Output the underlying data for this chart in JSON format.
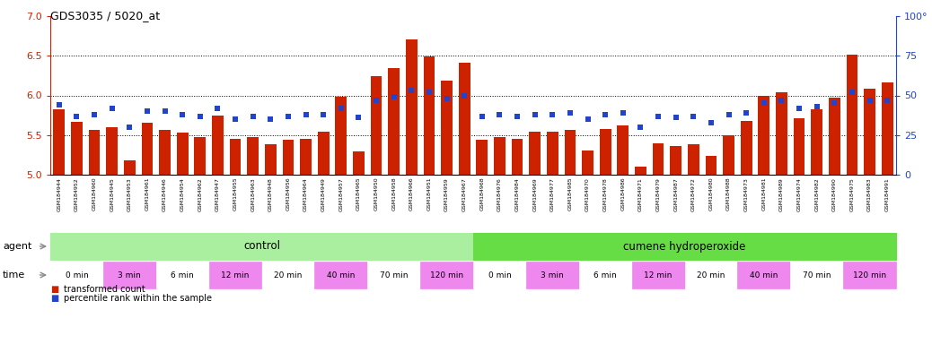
{
  "title": "GDS3035 / 5020_at",
  "samples": [
    "GSM184944",
    "GSM184952",
    "GSM184960",
    "GSM184945",
    "GSM184953",
    "GSM184961",
    "GSM184946",
    "GSM184954",
    "GSM184962",
    "GSM184947",
    "GSM184955",
    "GSM184963",
    "GSM184948",
    "GSM184956",
    "GSM184964",
    "GSM184949",
    "GSM184957",
    "GSM184965",
    "GSM184950",
    "GSM184958",
    "GSM184966",
    "GSM184951",
    "GSM184959",
    "GSM184967",
    "GSM184968",
    "GSM184976",
    "GSM184984",
    "GSM184969",
    "GSM184977",
    "GSM184985",
    "GSM184970",
    "GSM184978",
    "GSM184986",
    "GSM184971",
    "GSM184979",
    "GSM184987",
    "GSM184972",
    "GSM184980",
    "GSM184988",
    "GSM184973",
    "GSM184981",
    "GSM184989",
    "GSM184974",
    "GSM184982",
    "GSM184990",
    "GSM184975",
    "GSM184983",
    "GSM184991"
  ],
  "bar_values": [
    5.82,
    5.67,
    5.56,
    5.6,
    5.18,
    5.65,
    5.57,
    5.53,
    5.47,
    5.75,
    5.45,
    5.47,
    5.38,
    5.44,
    5.45,
    5.54,
    5.98,
    5.29,
    6.24,
    6.34,
    6.71,
    6.49,
    6.19,
    6.41,
    5.44,
    5.47,
    5.45,
    5.54,
    5.54,
    5.56,
    5.31,
    5.58,
    5.62,
    5.1,
    5.39,
    5.36,
    5.38,
    5.24,
    5.5,
    5.68,
    5.99,
    6.04,
    5.71,
    5.82,
    5.97,
    6.51,
    6.09,
    6.16
  ],
  "percentile_values": [
    44,
    37,
    38,
    42,
    30,
    40,
    40,
    38,
    37,
    42,
    35,
    37,
    35,
    37,
    38,
    38,
    42,
    36,
    47,
    49,
    53,
    52,
    48,
    50,
    37,
    38,
    37,
    38,
    38,
    39,
    35,
    38,
    39,
    30,
    37,
    36,
    37,
    33,
    38,
    39,
    45,
    47,
    42,
    43,
    45,
    52,
    47,
    47
  ],
  "ylim_left": [
    5.0,
    7.0
  ],
  "ylim_right": [
    0,
    100
  ],
  "yticks_left": [
    5.0,
    5.5,
    6.0,
    6.5,
    7.0
  ],
  "yticks_right": [
    0,
    25,
    50,
    75,
    100
  ],
  "ytick_labels_right": [
    "0",
    "25",
    "50",
    "75",
    "100°"
  ],
  "gridlines": [
    5.5,
    6.0,
    6.5
  ],
  "bar_color": "#cc2200",
  "square_color": "#2244cc",
  "agent_control_color": "#aaeea0",
  "agent_cumene_color": "#66dd44",
  "time_white_color": "#ffffff",
  "time_pink_color": "#ee88ee",
  "bg_xtick_color": "#e8e8e8",
  "times": [
    "0 min",
    "3 min",
    "6 min",
    "12 min",
    "20 min",
    "40 min",
    "70 min",
    "120 min"
  ],
  "legend_items": [
    "transformed count",
    "percentile rank within the sample"
  ]
}
